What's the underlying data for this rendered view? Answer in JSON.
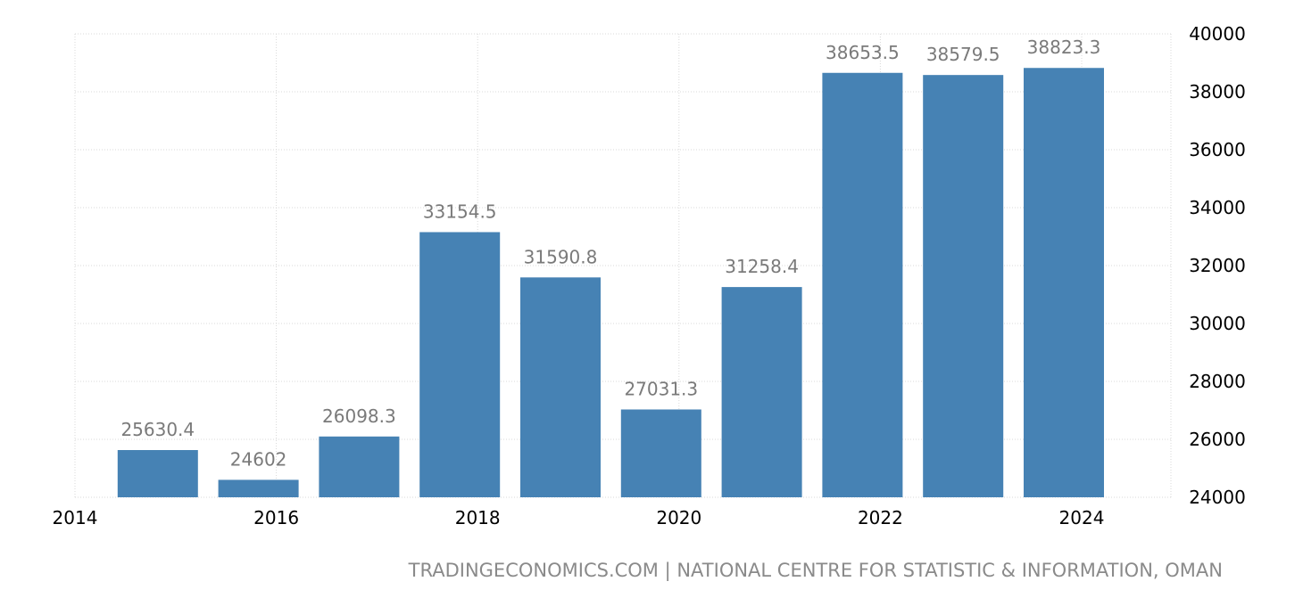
{
  "chart_data": {
    "type": "bar",
    "categories": [
      "2015",
      "2016",
      "2017",
      "2018",
      "2019",
      "2020",
      "2021",
      "2022",
      "2023",
      "2024"
    ],
    "values": [
      25630.4,
      24602,
      26098.3,
      33154.5,
      31590.8,
      27031.3,
      31258.4,
      38653.5,
      38579.5,
      38823.3
    ],
    "data_labels": [
      "25630.4",
      "24602",
      "26098.3",
      "33154.5",
      "31590.8",
      "27031.3",
      "31258.4",
      "38653.5",
      "38579.5",
      "38823.3"
    ],
    "x_ticks": [
      "2014",
      "2016",
      "2018",
      "2020",
      "2022",
      "2024"
    ],
    "y_ticks": [
      "24000",
      "26000",
      "28000",
      "30000",
      "32000",
      "34000",
      "36000",
      "38000",
      "40000"
    ],
    "xlim": [
      2014,
      2024.5
    ],
    "ylim": [
      24000,
      40000
    ],
    "y_axis_side": "right",
    "grid": true,
    "bar_color": "#4682b4",
    "label_color": "#7a7a7a",
    "grid_color": "#d9d9d9"
  },
  "source": "TRADINGECONOMICS.COM | NATIONAL CENTRE FOR STATISTIC & INFORMATION, OMAN"
}
